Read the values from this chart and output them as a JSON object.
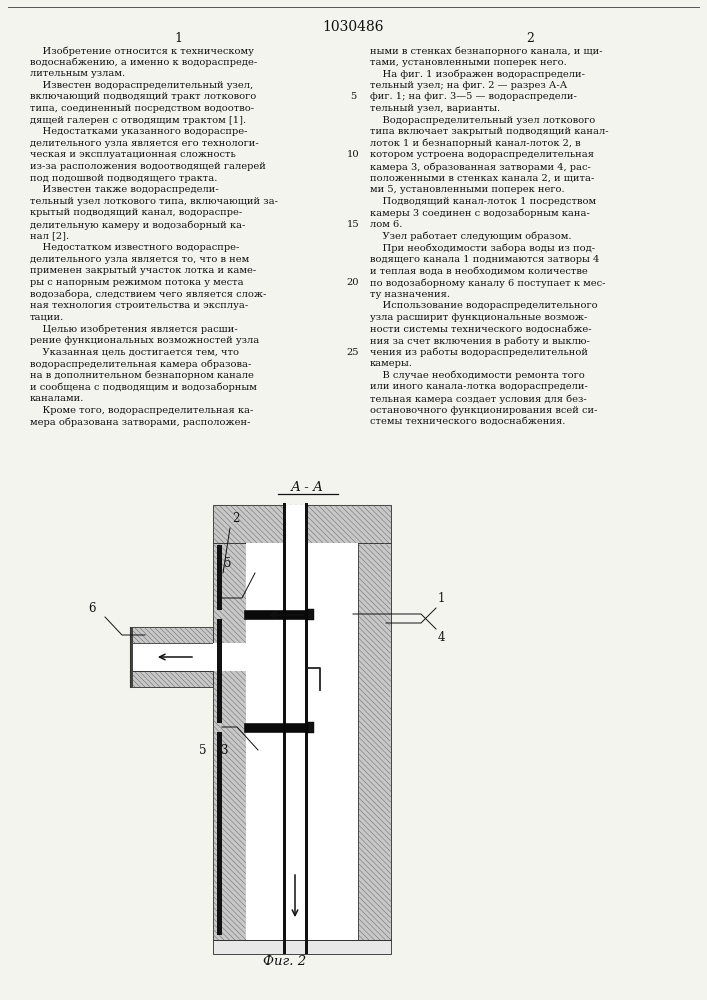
{
  "patent_number": "1030486",
  "background": "#f4f4ef",
  "col1_header": "1",
  "col2_header": "2",
  "fig_caption": "Фиг. 2",
  "aa_label": "А - А",
  "col1_text": [
    "    Изобретение относится к техническому",
    "водоснабжению, а именно к водораспреде-",
    "лительным узлам.",
    "    Известен водораспределительный узел,",
    "включающий подводящий тракт лоткового",
    "типа, соединенный посредством водоотво-",
    "дящей галерен с отводящим трактом [1].",
    "    Недостатками указанного водораспре-",
    "делительного узла является его технологи-",
    "ческая и эксплуатационная сложность",
    "из-за расположения водоотводящей галерей",
    "под подошвой подводящего тракта.",
    "    Известен также водораспредели-",
    "тельный узел лоткового типа, включающий за-",
    "крытый подводящий канал, водораспре-",
    "делительную камеру и водозаборный ка-",
    "нал [2].",
    "    Недостатком известного водораспре-",
    "делительного узла является то, что в нем",
    "применен закрытый участок лотка и каме-",
    "ры с напорным режимом потока у места",
    "водозабора, следствием чего является слож-",
    "ная технология строительства и эксплуа-",
    "тации.",
    "    Целью изобретения является расши-",
    "рение функциональных возможностей узла",
    "    Указанная цель достигается тем, что",
    "водораспределительная камера образова-",
    "на в дополнительном безнапорном канале",
    "и сообщена с подводящим и водозаборным",
    "каналами.",
    "    Кроме того, водораспределительная ка-",
    "мера образована затворами, расположен-"
  ],
  "col2_text": [
    "ными в стенках безнапорного канала, и щи-",
    "тами, установленными поперек него.",
    "    На фиг. 1 изображен водораспредели-",
    "тельный узел; на фиг. 2 — разрез А-А",
    "фиг. 1; на фиг. 3—5 — водораспредели-",
    "тельный узел, варианты.",
    "    Водораспределительный узел лоткового",
    "типа включает закрытый подводящий канал-",
    "лоток 1 и безнапорный канал-лоток 2, в",
    "котором устроена водораспределительная",
    "камера 3, образованная затворами 4, рас-",
    "положенными в стенках канала 2, и щита-",
    "ми 5, установленными поперек него.",
    "    Подводящий канал-лоток 1 посредством",
    "камеры 3 соединен с водозаборным кана-",
    "лом 6.",
    "    Узел работает следующим образом.",
    "    При необходимости забора воды из под-",
    "водящего канала 1 поднимаются затворы 4",
    "и теплая вода в необходимом количестве",
    "по водозаборному каналу 6 поступает к мес-",
    "ту назначения.",
    "    Использование водораспределительного",
    "узла расширит функциональные возмож-",
    "ности системы технического водоснабже-",
    "ния за счет включения в работу и выклю-",
    "чения из работы водораспределительной",
    "камеры.",
    "    В случае необходимости ремонта того",
    "или иного канала-лотка водораспредели-",
    "тельная камера создает условия для без-",
    "остановочного функционирования всей си-",
    "стемы технического водоснабжения."
  ],
  "line_numbers": [
    {
      "num": "5",
      "row_idx": 4
    },
    {
      "num": "10",
      "row_idx": 9
    },
    {
      "num": "15",
      "row_idx": 15
    },
    {
      "num": "20",
      "row_idx": 20
    },
    {
      "num": "25",
      "row_idx": 26
    }
  ]
}
